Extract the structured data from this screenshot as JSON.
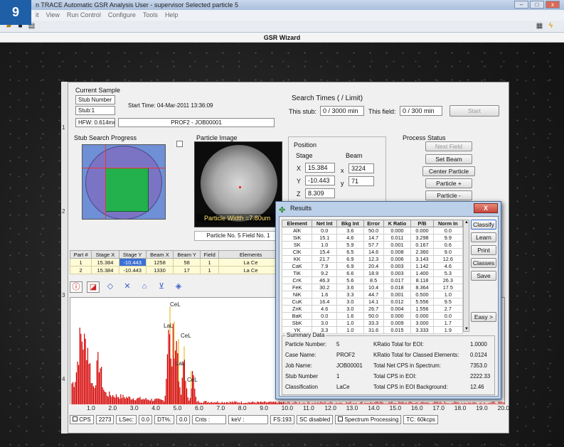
{
  "badge": "9",
  "window": {
    "title": "n TRACE Automatic GSR Analysis   User - supervisor   Selected particle 5"
  },
  "menu": [
    "it",
    "View",
    "Run Control",
    "Configure",
    "Tools",
    "Help"
  ],
  "wizard_title": "GSR Wizard",
  "ruler_marks": [
    "1",
    "2",
    "3",
    "4"
  ],
  "current_sample": {
    "heading": "Current Sample",
    "stub_number_label": "Stub Number",
    "stub_value": "Stub:1",
    "start_time": "Start Time: 04-Mar-2011 13:36:09",
    "hfw": "HFW: 0.614mm",
    "job": "PROF2 - JOB00001"
  },
  "search_times": {
    "heading": "Search Times ( / Limit)",
    "stub_label": "This stub:",
    "stub_value": "0 / 3000 min",
    "field_label": "This field:",
    "field_value": "0 / 300 min",
    "start_button": "Start"
  },
  "stub_progress_label": "Stub Search Progress",
  "particle_image": {
    "label": "Particle Image",
    "width_text": "Particle Width =7.80um",
    "caption": "Particle No. 5 Field No. 1"
  },
  "position": {
    "heading": "Position",
    "stage_label": "Stage",
    "beam_label": "Beam",
    "x_label": "X",
    "y_label": "Y",
    "z_label": "Z",
    "stage_x": "15.384",
    "stage_y": "-10.443",
    "stage_z": "8.309",
    "beam_x_label": "x",
    "beam_y_label": "y",
    "beam_x": "3224",
    "beam_y": "71"
  },
  "process_status": {
    "heading": "Process Status",
    "next_field": "Next Field",
    "set_beam": "Set Beam",
    "center_particle": "Center Particle",
    "particle_plus": "Particle +",
    "particle_minus": "Particle -"
  },
  "particles_table": {
    "headers": [
      "Part #",
      "Stage X",
      "Stage Y",
      "Beam X",
      "Beam Y",
      "Field",
      "Elements"
    ],
    "rows": [
      [
        "1",
        "15.384",
        "-10.443",
        "1258",
        "58",
        "1",
        "La Ce"
      ],
      [
        "2",
        "15.384",
        "-10.443",
        "1330",
        "17",
        "1",
        "La Ce"
      ]
    ]
  },
  "tool_icons": [
    "info-icon",
    "chart-icon",
    "expand-icon",
    "collapse-icon",
    "triangle-up-icon",
    "triangle-down-icon",
    "save-icon"
  ],
  "spectrum": {
    "peak_labels": [
      "CeL",
      "LaL",
      "CeL",
      "LaL",
      "CeL"
    ],
    "x_ticks": [
      "1.0",
      "2.0",
      "3.0",
      "4.0",
      "5.0",
      "6.0",
      "7.0",
      "8.0",
      "9.0",
      "10.0",
      "11.0",
      "12.0",
      "13.0",
      "14.0",
      "15.0",
      "16.0",
      "17.0",
      "18.0",
      "19.0",
      "20.0"
    ]
  },
  "status_bar": {
    "cps_label": "CPS",
    "cps_value": "2273",
    "lsec_label": "LSec:",
    "lsec_value": "0.0",
    "dt_label": "DT%:",
    "dt_value": "0.0",
    "cnts": "Cnts :",
    "kev": "keV :",
    "fs": "FS:193",
    "sc": "SC disabled",
    "spectrum_processing": "Spectrum Processing",
    "tc": "TC: 60kcps"
  },
  "results": {
    "title": "Results",
    "close": "X",
    "headers": [
      "Element",
      "Net Int",
      "Bkg Int",
      "Error",
      "K Ratio",
      "P/B",
      "Norm In"
    ],
    "rows": [
      [
        "AlK",
        "0.0",
        "3.6",
        "50.0",
        "0.000",
        "0.000",
        "0.0"
      ],
      [
        "SiK",
        "15.1",
        "4.6",
        "14.7",
        "0.011",
        "3.298",
        "9.9"
      ],
      [
        "SK",
        "1.0",
        "5.9",
        "57.7",
        "0.001",
        "0.167",
        "0.6"
      ],
      [
        "ClK",
        "15.4",
        "6.5",
        "14.6",
        "0.008",
        "2.360",
        "9.0"
      ],
      [
        "KK",
        "21.7",
        "6.9",
        "12.3",
        "0.006",
        "3.143",
        "12.6"
      ],
      [
        "CaK",
        "7.9",
        "6.9",
        "20.4",
        "0.003",
        "1.142",
        "4.6"
      ],
      [
        "TiK",
        "9.2",
        "6.6",
        "18.9",
        "0.003",
        "1.400",
        "5.3"
      ],
      [
        "CrK",
        "46.3",
        "5.6",
        "8.5",
        "0.017",
        "8.118",
        "26.3"
      ],
      [
        "FeK",
        "30.2",
        "3.6",
        "10.4",
        "0.018",
        "8.364",
        "17.5"
      ],
      [
        "NiK",
        "1.6",
        "3.3",
        "44.7",
        "0.001",
        "0.500",
        "1.0"
      ],
      [
        "CuK",
        "16.4",
        "3.0",
        "14.1",
        "0.012",
        "5.556",
        "9.5"
      ],
      [
        "ZnK",
        "4.6",
        "3.0",
        "26.7",
        "0.004",
        "1.556",
        "2.7"
      ],
      [
        "BaK",
        "0.0",
        "1.6",
        "50.0",
        "0.000",
        "0.000",
        "0.0"
      ],
      [
        "SbK",
        "3.0",
        "1.0",
        "33.3",
        "0.009",
        "3.000",
        "1.7"
      ],
      [
        "YK",
        "3.3",
        "1.0",
        "31.6",
        "0.015",
        "3.333",
        "1.9"
      ]
    ],
    "buttons": [
      "Classify",
      "Learn",
      "Print",
      "Classes",
      "Save",
      "Easy >"
    ],
    "summary": {
      "title": "Summary Data",
      "particle_number_label": "Particle Number:",
      "particle_number": "5",
      "case_name_label": "Case Name:",
      "case_name": "PROF2",
      "job_name_label": "Job Name:",
      "job_name": "JOB00001",
      "stub_number_label": "Stub Number",
      "stub_number": "1",
      "classification_label": "Classification",
      "classification": "LaCe",
      "kratio_eoi_label": "KRatio Total for EOI:",
      "kratio_eoi": "1.0000",
      "kratio_classed_label": "KRatio Total for Classed Elements:",
      "kratio_classed": "0.0124",
      "net_cps_label": "Total Net CPS in Spectrum:",
      "net_cps": "7353.0",
      "cps_eoi_label": "Total CPS in EOI:",
      "cps_eoi": "2222.33",
      "cps_bkg_label": "Total CPS in EOI Background:",
      "cps_bkg": "12.46"
    }
  },
  "colors": {
    "accent": "#1f5fa8",
    "spectrum": "#d40000",
    "peak_marker": "#e0b000",
    "selection": "#3a6fd6"
  }
}
